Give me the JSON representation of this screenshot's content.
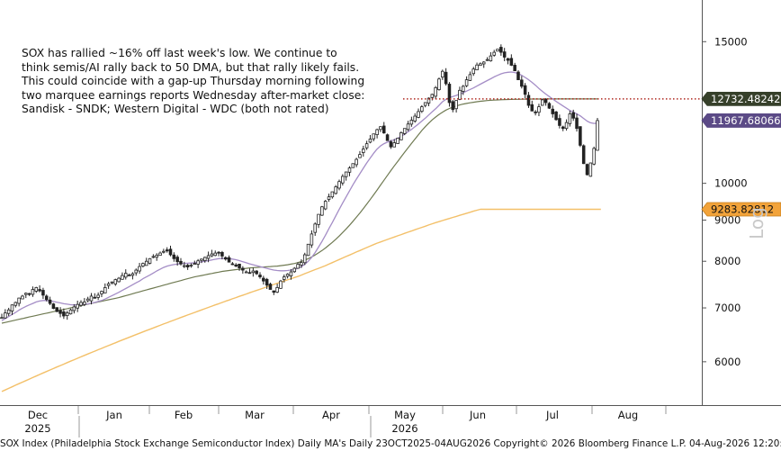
{
  "annotation": "SOX has rallied ~16% off last week's low. We continue to\nthink semis/AI rally back to 50 DMA, but that rally likely fails.\nThis could coincide with a gap-up Thursday morning following\ntwo marquee earnings reports Wednesday after-market close:\nSandisk - SNDK; Western Digital - WDC (both not rated)",
  "footer": "SOX Index (Philadelphia Stock Exchange Semiconductor Index) Daily MA's Daily 23OCT2025-04AUG2026 Copyright© 2026 Bloomberg Finance L.P. 04-Aug-2026 12:20:26",
  "axis_scale_label": "Log",
  "colors": {
    "candle": "#222222",
    "ma20": "#a48dc6",
    "ma50": "#6f7a52",
    "ma200": "#f3c069",
    "resistance": "#b02a22",
    "tag_resistance_bg": "#36402a",
    "tag_price_bg": "#5b4a86",
    "tag_ma200_bg": "#f2a33a"
  },
  "chart_data": {
    "type": "candlestick",
    "y_scale": "log",
    "ylim": [
      5300,
      16900
    ],
    "y_ticks": [
      "6000",
      "7000",
      "8000",
      "9000",
      "10000",
      "15000"
    ],
    "x_ticks": [
      {
        "label": "Dec",
        "sub": "2025"
      },
      {
        "label": "Jan",
        "sub": ""
      },
      {
        "label": "Feb",
        "sub": ""
      },
      {
        "label": "Mar",
        "sub": ""
      },
      {
        "label": "Apr",
        "sub": ""
      },
      {
        "label": "May",
        "sub": "2026"
      },
      {
        "label": "Jun",
        "sub": ""
      },
      {
        "label": "Jul",
        "sub": ""
      },
      {
        "label": "Aug",
        "sub": ""
      }
    ],
    "value_tags": [
      {
        "label": "12732.48242",
        "value": 12732.48,
        "kind": "resistance"
      },
      {
        "label": "11967.68066",
        "value": 11967.68,
        "kind": "price"
      },
      {
        "label": "9283.82812",
        "value": 9283.83,
        "kind": "ma200"
      }
    ],
    "resistance_level": 12732.48,
    "closes": [
      6810,
      6900,
      6960,
      7060,
      7110,
      7200,
      7240,
      7300,
      7290,
      7380,
      7420,
      7350,
      7260,
      7170,
      7090,
      6990,
      6930,
      6890,
      6840,
      6900,
      6960,
      7020,
      7070,
      7110,
      7120,
      7180,
      7240,
      7200,
      7260,
      7340,
      7420,
      7500,
      7540,
      7590,
      7620,
      7680,
      7730,
      7690,
      7720,
      7800,
      7880,
      7950,
      8000,
      8060,
      8110,
      8140,
      8190,
      8230,
      8240,
      8150,
      8060,
      7990,
      7940,
      7900,
      7870,
      7910,
      7950,
      8010,
      8050,
      8090,
      8130,
      8170,
      8190,
      8200,
      8120,
      8050,
      7980,
      7930,
      7890,
      7850,
      7800,
      7760,
      7730,
      7780,
      7720,
      7650,
      7560,
      7470,
      7380,
      7320,
      7420,
      7560,
      7650,
      7710,
      7760,
      7840,
      7930,
      7970,
      8150,
      8400,
      8650,
      8900,
      9150,
      9350,
      9500,
      9620,
      9760,
      9900,
      10050,
      10200,
      10330,
      10450,
      10580,
      10710,
      10860,
      11030,
      11200,
      11350,
      11520,
      11660,
      11760,
      11550,
      11300,
      11100,
      11230,
      11380,
      11560,
      11700,
      11850,
      11980,
      12120,
      12280,
      12450,
      12600,
      12760,
      12900,
      13150,
      13480,
      13780,
      13300,
      12600,
      12350,
      12680,
      13050,
      13200,
      13450,
      13650,
      13870,
      14030,
      14080,
      14150,
      14250,
      14400,
      14550,
      14680,
      14550,
      14350,
      14220,
      14020,
      13800,
      13450,
      13200,
      12900,
      12500,
      12300,
      12250,
      12450,
      12700,
      12600,
      12400,
      12200,
      12000,
      11800,
      11700,
      11900,
      12200,
      12050,
      11700,
      11150,
      10580,
      10250,
      10600,
      11050,
      11967.68
    ],
    "ma20": [
      6750,
      6790,
      6830,
      6870,
      6910,
      6955,
      6995,
      7030,
      7060,
      7090,
      7120,
      7140,
      7150,
      7150,
      7140,
      7130,
      7115,
      7100,
      7085,
      7075,
      7065,
      7060,
      7060,
      7065,
      7070,
      7080,
      7095,
      7110,
      7130,
      7150,
      7180,
      7215,
      7250,
      7285,
      7320,
      7360,
      7400,
      7440,
      7480,
      7520,
      7560,
      7610,
      7650,
      7690,
      7735,
      7780,
      7820,
      7860,
      7890,
      7910,
      7925,
      7935,
      7945,
      7950,
      7955,
      7960,
      7965,
      7975,
      7985,
      8000,
      8015,
      8030,
      8045,
      8060,
      8065,
      8065,
      8060,
      8050,
      8035,
      8015,
      7990,
      7965,
      7940,
      7920,
      7900,
      7880,
      7860,
      7840,
      7820,
      7800,
      7790,
      7785,
      7785,
      7790,
      7800,
      7815,
      7840,
      7875,
      7930,
      8000,
      8090,
      8200,
      8330,
      8470,
      8620,
      8780,
      8940,
      9110,
      9280,
      9450,
      9620,
      9790,
      9960,
      10120,
      10280,
      10440,
      10600,
      10750,
      10900,
      11030,
      11130,
      11200,
      11250,
      11290,
      11330,
      11380,
      11440,
      11510,
      11590,
      11670,
      11760,
      11850,
      11950,
      12050,
      12160,
      12270,
      12380,
      12500,
      12630,
      12720,
      12780,
      12820,
      12860,
      12910,
      12960,
      13020,
      13080,
      13140,
      13210,
      13280,
      13350,
      13420,
      13490,
      13560,
      13620,
      13680,
      13720,
      13740,
      13750,
      13730,
      13690,
      13620,
      13540,
      13450,
      13350,
      13240,
      13120,
      13010,
      12910,
      12820,
      12730,
      12640,
      12560,
      12480,
      12400,
      12320,
      12260,
      12200,
      12130,
      12040,
      11950,
      11890,
      11870,
      11880
    ],
    "ma50": [
      6700,
      6715,
      6730,
      6745,
      6760,
      6775,
      6790,
      6805,
      6820,
      6835,
      6850,
      6865,
      6880,
      6895,
      6910,
      6925,
      6940,
      6955,
      6970,
      6985,
      7000,
      7015,
      7030,
      7045,
      7060,
      7075,
      7090,
      7105,
      7120,
      7135,
      7150,
      7165,
      7180,
      7195,
      7210,
      7230,
      7250,
      7270,
      7290,
      7310,
      7330,
      7350,
      7370,
      7390,
      7410,
      7430,
      7450,
      7470,
      7490,
      7510,
      7530,
      7550,
      7570,
      7590,
      7610,
      7630,
      7650,
      7665,
      7680,
      7695,
      7710,
      7725,
      7740,
      7755,
      7770,
      7780,
      7790,
      7800,
      7810,
      7820,
      7830,
      7840,
      7850,
      7855,
      7860,
      7865,
      7870,
      7875,
      7880,
      7885,
      7890,
      7900,
      7910,
      7920,
      7935,
      7950,
      7970,
      7995,
      8025,
      8060,
      8100,
      8145,
      8195,
      8250,
      8310,
      8375,
      8445,
      8520,
      8600,
      8685,
      8775,
      8870,
      8970,
      9075,
      9185,
      9300,
      9420,
      9545,
      9675,
      9810,
      9950,
      10090,
      10230,
      10370,
      10510,
      10650,
      10790,
      10930,
      11070,
      11210,
      11350,
      11490,
      11630,
      11760,
      11880,
      11990,
      12090,
      12180,
      12260,
      12330,
      12390,
      12440,
      12480,
      12515,
      12545,
      12570,
      12592,
      12612,
      12630,
      12646,
      12660,
      12672,
      12682,
      12690,
      12697,
      12703,
      12708,
      12712,
      12715,
      12718,
      12720,
      12722,
      12724,
      12726,
      12727,
      12728,
      12729,
      12730,
      12730,
      12731,
      12731,
      12732,
      12732,
      12732,
      12732,
      12732,
      12732,
      12732,
      12732,
      12732,
      12732,
      12732,
      12732,
      12732
    ],
    "ma200": [
      5510,
      5535,
      5560,
      5585,
      5610,
      5635,
      5660,
      5685,
      5710,
      5735,
      5760,
      5785,
      5810,
      5835,
      5860,
      5885,
      5910,
      5935,
      5960,
      5985,
      6010,
      6035,
      6060,
      6085,
      6110,
      6135,
      6160,
      6185,
      6210,
      6235,
      6260,
      6285,
      6310,
      6335,
      6360,
      6385,
      6410,
      6435,
      6460,
      6485,
      6510,
      6535,
      6560,
      6585,
      6610,
      6635,
      6660,
      6685,
      6710,
      6735,
      6760,
      6785,
      6810,
      6835,
      6860,
      6885,
      6910,
      6935,
      6960,
      6985,
      7010,
      7035,
      7060,
      7085,
      7110,
      7135,
      7160,
      7185,
      7210,
      7235,
      7260,
      7285,
      7310,
      7335,
      7360,
      7385,
      7410,
      7435,
      7460,
      7485,
      7510,
      7535,
      7560,
      7585,
      7610,
      7635,
      7660,
      7690,
      7720,
      7750,
      7780,
      7810,
      7840,
      7870,
      7900,
      7935,
      7970,
      8005,
      8040,
      8075,
      8110,
      8145,
      8180,
      8215,
      8250,
      8285,
      8320,
      8355,
      8390,
      8425,
      8455,
      8485,
      8515,
      8545,
      8575,
      8605,
      8635,
      8665,
      8695,
      8725,
      8755,
      8785,
      8815,
      8845,
      8875,
      8905,
      8935,
      8962,
      8989,
      9016,
      9043,
      9070,
      9097,
      9124,
      9151,
      9178,
      9205,
      9232,
      9259,
      9283.83,
      9283.83,
      9283.83,
      9283.83,
      9283.83,
      9283.83,
      9283.83,
      9283.83,
      9283.83,
      9283.83,
      9283.83,
      9283.83,
      9283.83,
      9283.83,
      9283.83,
      9283.83,
      9283.83,
      9283.83,
      9283.83,
      9283.83,
      9283.83,
      9283.83,
      9283.83,
      9283.83,
      9283.83,
      9283.83,
      9283.83,
      9283.83,
      9283.83,
      9283.83,
      9283.83,
      9283.83,
      9283.83,
      9283.83,
      9283.83,
      9283.83
    ]
  }
}
